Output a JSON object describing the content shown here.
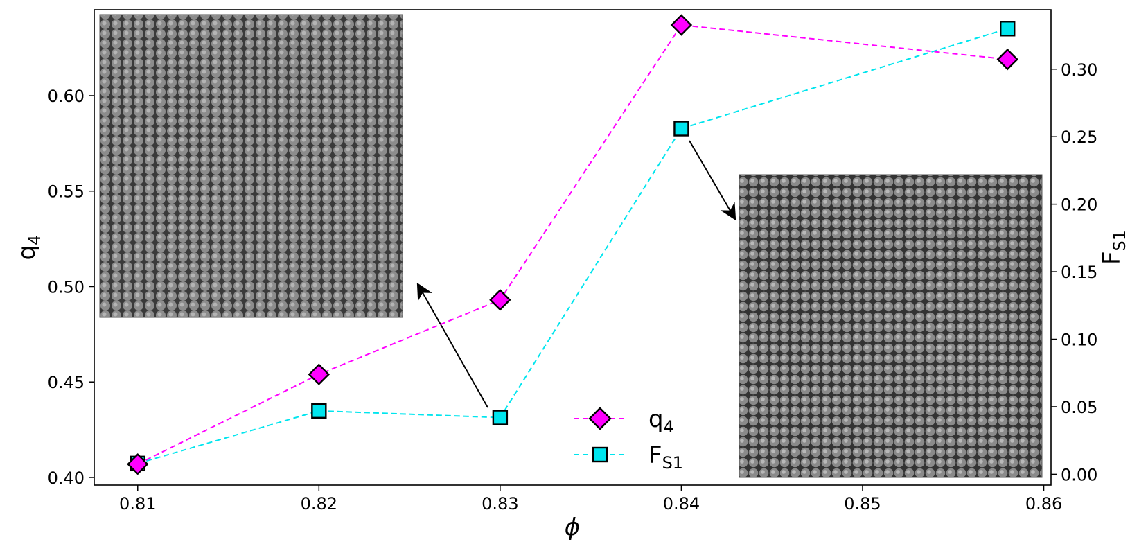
{
  "chart_data": {
    "type": "line",
    "xlabel": "ϕ",
    "x_ticks": [
      "0.81",
      "0.82",
      "0.83",
      "0.84",
      "0.85",
      "0.86"
    ],
    "xlim": [
      0.8076,
      0.8604
    ],
    "left_axis": {
      "label_main": "q",
      "label_sub": "4",
      "ticks": [
        "0.40",
        "0.45",
        "0.50",
        "0.55",
        "0.60"
      ],
      "ylim": [
        0.396,
        0.645
      ]
    },
    "right_axis": {
      "label_main": "F",
      "label_sub": "S1",
      "ticks": [
        "0.00",
        "0.05",
        "0.10",
        "0.15",
        "0.20",
        "0.25",
        "0.30"
      ],
      "ylim": [
        -0.008,
        0.344
      ]
    },
    "series": [
      {
        "name_main": "q",
        "name_sub": "4",
        "axis": "left",
        "marker": "diamond",
        "color": "#ff00ff",
        "x": [
          0.81,
          0.82,
          0.83,
          0.84,
          0.858
        ],
        "y": [
          0.407,
          0.454,
          0.493,
          0.637,
          0.619
        ]
      },
      {
        "name_main": "F",
        "name_sub": "S1",
        "axis": "right",
        "marker": "square",
        "color": "#00e5ee",
        "x": [
          0.81,
          0.82,
          0.83,
          0.84,
          0.858
        ],
        "y": [
          0.008,
          0.047,
          0.042,
          0.256,
          0.33
        ]
      }
    ],
    "legend_position": "lower-center",
    "insets": [
      {
        "description": "grayscale micrograph of packed spheres",
        "annotates_x": 0.83
      },
      {
        "description": "grayscale micrograph of packed spheres",
        "annotates_x": 0.84
      }
    ],
    "grid": false
  }
}
